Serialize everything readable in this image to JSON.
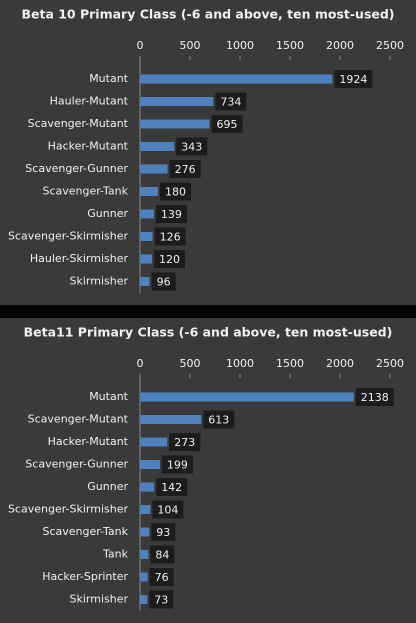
{
  "chart_data": [
    {
      "type": "bar",
      "orientation": "horizontal",
      "title": "Beta 10 Primary Class (-6 and above, ten most-used)",
      "categories": [
        "Mutant",
        "Hauler-Mutant",
        "Scavenger-Mutant",
        "Hacker-Mutant",
        "Scavenger-Gunner",
        "Scavenger-Tank",
        "Gunner",
        "Scavenger-Skirmisher",
        "Hauler-Skirmisher",
        "Skirmisher"
      ],
      "values": [
        1924,
        734,
        695,
        343,
        276,
        180,
        139,
        126,
        120,
        96
      ],
      "color": "#4f81bd",
      "xlim": [
        0,
        2500
      ],
      "xticks": [
        0,
        500,
        1000,
        1500,
        2000,
        2500
      ]
    },
    {
      "type": "bar",
      "orientation": "horizontal",
      "title": "Beta11 Primary Class (-6 and above, ten most-used)",
      "categories": [
        "Mutant",
        "Scavenger-Mutant",
        "Hacker-Mutant",
        "Scavenger-Gunner",
        "Gunner",
        "Scavenger-Skirmisher",
        "Scavenger-Tank",
        "Tank",
        "Hacker-Sprinter",
        "Skirmisher"
      ],
      "values": [
        2138,
        613,
        273,
        199,
        142,
        104,
        93,
        84,
        76,
        73
      ],
      "color": "#4f81bd",
      "xlim": [
        0,
        2500
      ],
      "xticks": [
        0,
        500,
        1000,
        1500,
        2000,
        2500
      ]
    }
  ]
}
